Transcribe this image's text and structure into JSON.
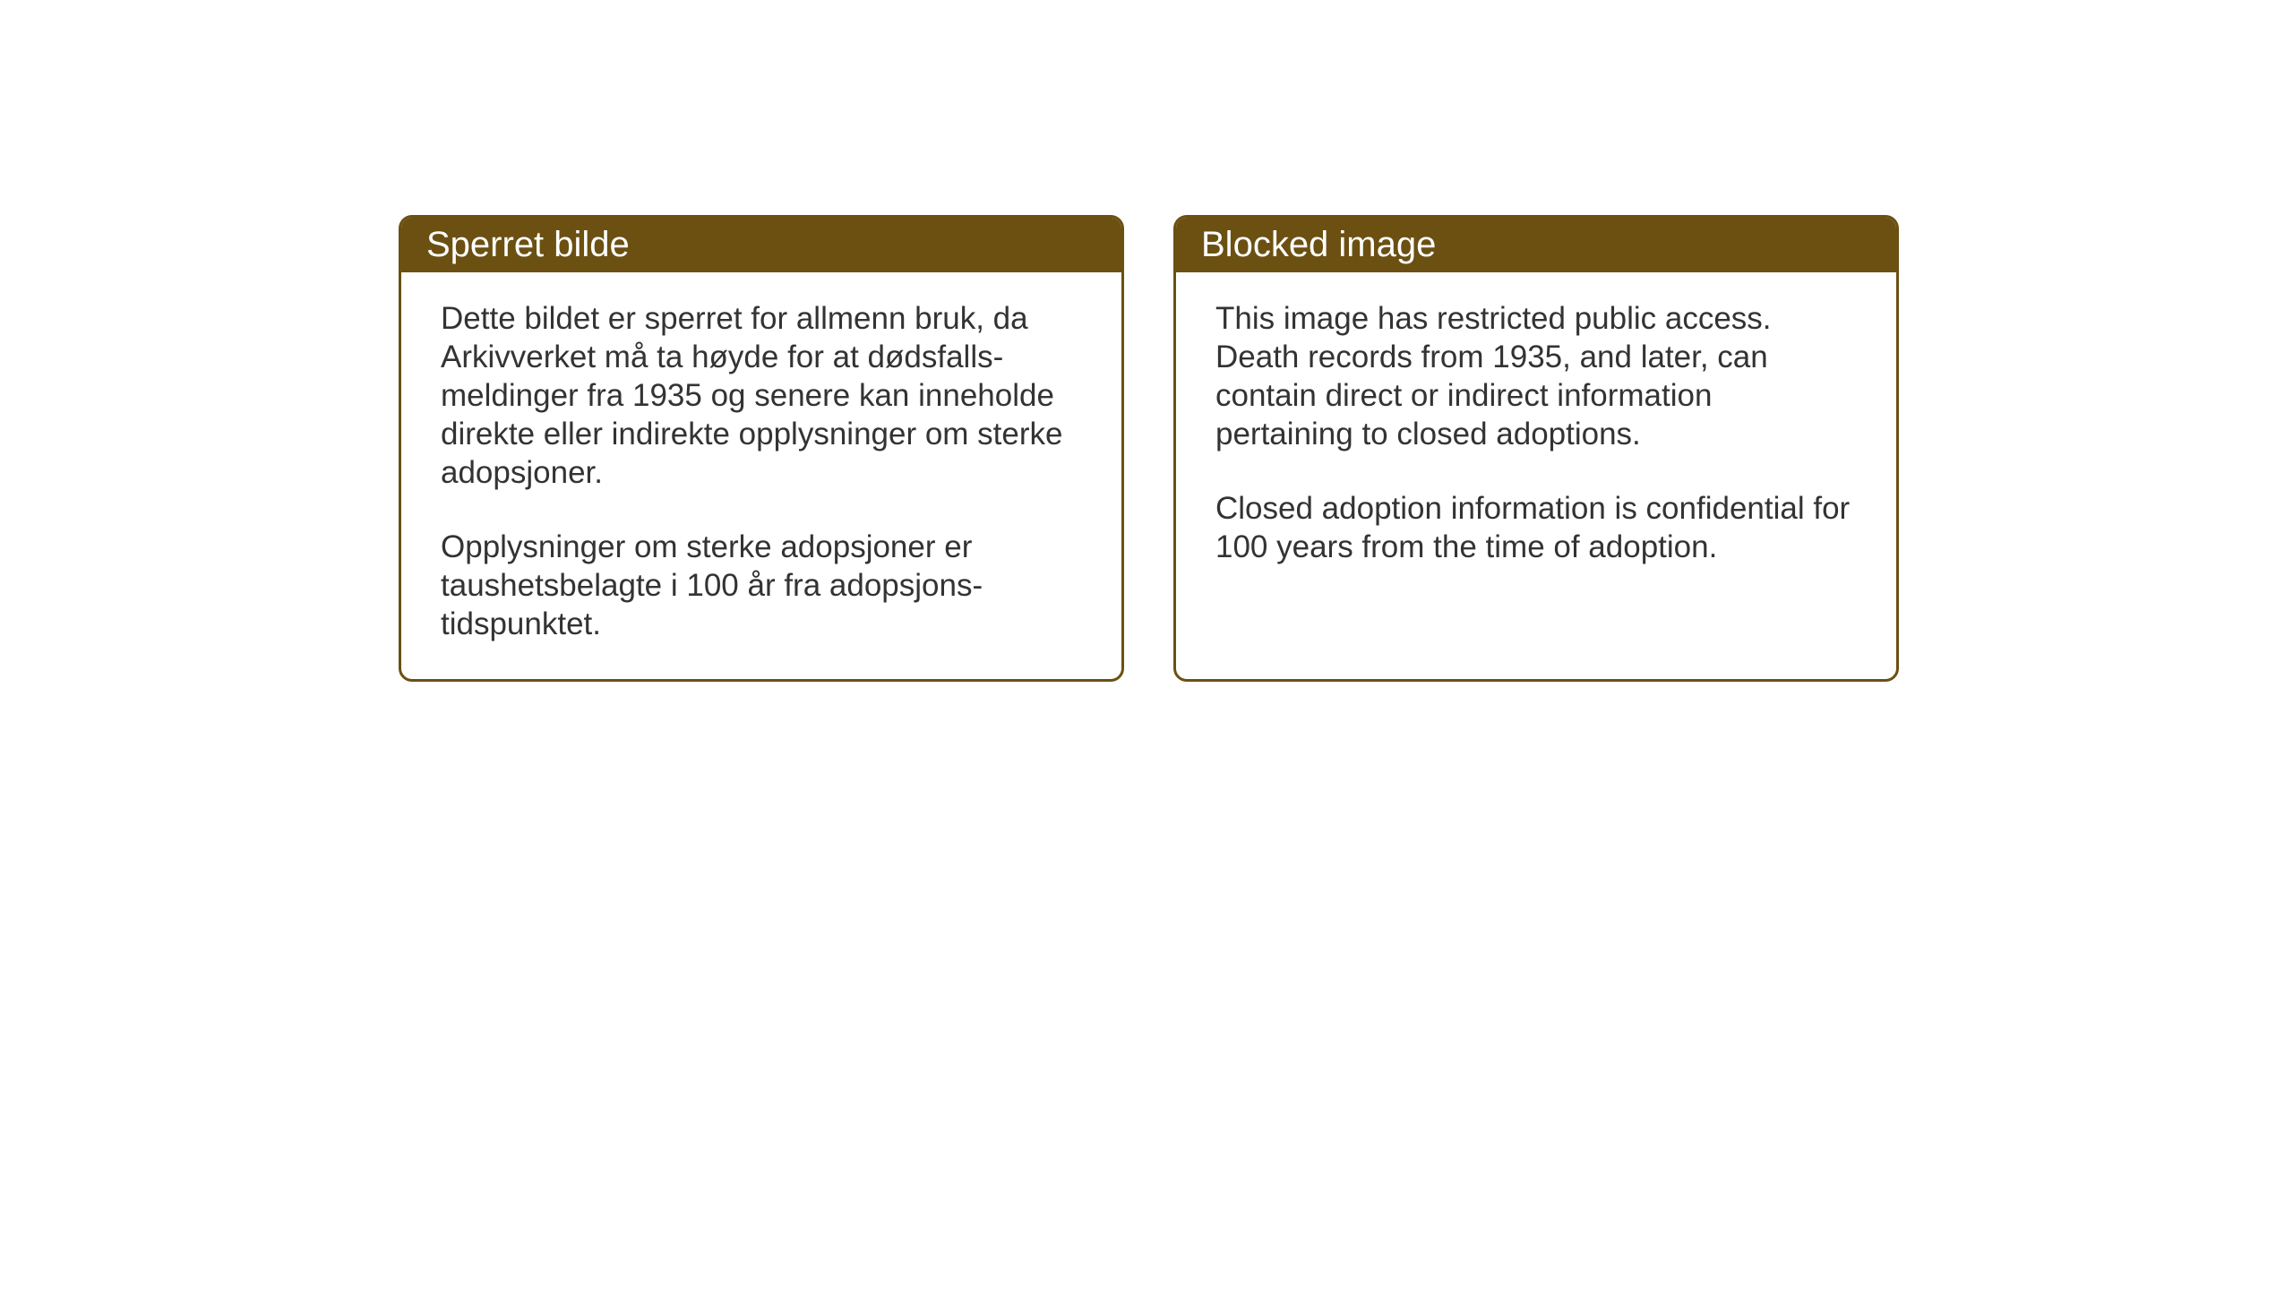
{
  "cards": {
    "norwegian": {
      "title": "Sperret bilde",
      "paragraph1": "Dette bildet er sperret for allmenn bruk, da Arkivverket må ta høyde for at dødsfalls-meldinger fra 1935 og senere kan inneholde direkte eller indirekte opplysninger om sterke adopsjoner.",
      "paragraph2": "Opplysninger om sterke adopsjoner er taushetsbelagte i 100 år fra adopsjons-tidspunktet."
    },
    "english": {
      "title": "Blocked image",
      "paragraph1": "This image has restricted public access. Death records from 1935, and later, can contain direct or indirect information pertaining to closed adoptions.",
      "paragraph2": "Closed adoption information is confidential for 100 years from the time of adoption."
    }
  },
  "styling": {
    "header_bg_color": "#6b5012",
    "header_text_color": "#ffffff",
    "border_color": "#6b5012",
    "body_text_color": "#333333",
    "background_color": "#ffffff",
    "title_fontsize": 40,
    "body_fontsize": 35,
    "border_width": 3,
    "border_radius": 15
  }
}
